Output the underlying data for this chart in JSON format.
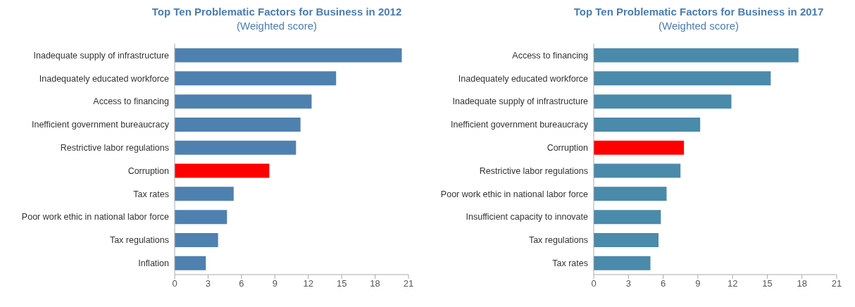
{
  "chart_data": [
    {
      "type": "bar",
      "orientation": "horizontal",
      "title": "Top Ten Problematic Factors for Business in 2012",
      "subtitle": "(Weighted score)",
      "categories": [
        "Inadequate supply of infrastructure",
        "Inadequately educated workforce",
        "Access to financing",
        "Inefficient government bureaucracy",
        "Restrictive labor regulations",
        "Corruption",
        "Tax rates",
        "Poor work ethic in national labor force",
        "Tax regulations",
        "Inflation"
      ],
      "values": [
        20.4,
        14.5,
        12.3,
        11.3,
        10.9,
        8.5,
        5.3,
        4.7,
        3.9,
        2.8
      ],
      "colors": [
        "#4e81b0",
        "#4e81b0",
        "#4e81b0",
        "#4e81b0",
        "#4e81b0",
        "#ff0000",
        "#4e81b0",
        "#4e81b0",
        "#4e81b0",
        "#4e81b0"
      ],
      "xlim": [
        0,
        21
      ],
      "xticks": [
        0,
        3,
        6,
        9,
        12,
        15,
        18,
        21
      ],
      "grid": false,
      "legend": false
    },
    {
      "type": "bar",
      "orientation": "horizontal",
      "title": "Top Ten Problematic Factors for Business in 2017",
      "subtitle": "(Weighted score)",
      "categories": [
        "Access to financing",
        "Inadequately educated workforce",
        "Inadequate supply of infrastructure",
        "Inefficient government bureaucracy",
        "Corruption",
        "Restrictive labor regulations",
        "Poor work ethic in national labor force",
        "Insufficient capacity to innovate",
        "Tax regulations",
        "Tax rates"
      ],
      "values": [
        17.7,
        15.3,
        11.9,
        9.2,
        7.8,
        7.5,
        6.3,
        5.8,
        5.6,
        4.9
      ],
      "colors": [
        "#4a8aab",
        "#4a8aab",
        "#4a8aab",
        "#4a8aab",
        "#ff0000",
        "#4a8aab",
        "#4a8aab",
        "#4a8aab",
        "#4a8aab",
        "#4a8aab"
      ],
      "xlim": [
        0,
        21
      ],
      "xticks": [
        0,
        3,
        6,
        9,
        12,
        15,
        18,
        21
      ],
      "grid": false,
      "legend": false
    }
  ]
}
